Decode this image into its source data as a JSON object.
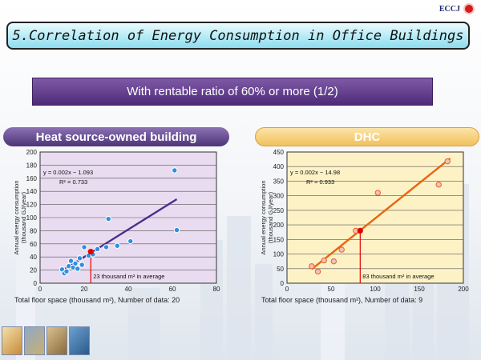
{
  "header": {
    "logo_text": "ECCJ",
    "title": "5.Correlation of Energy Consumption in Office Buildings",
    "subtitle": "With rentable ratio of 60% or more (1/2)"
  },
  "panels": {
    "left_title": "Heat source-owned building",
    "right_title": "DHC"
  },
  "colors": {
    "left_panel": "#e9dcf0",
    "right_panel": "#fdf2c6",
    "left_line": "#4a2e8c",
    "right_line": "#e8650f",
    "left_points": "#2f8ee0",
    "right_points": "#e85b3a",
    "average_marker": "#e00000"
  },
  "chart_data": [
    {
      "type": "scatter",
      "ylabel_line1": "Annual energy consumption",
      "ylabel_line2": "(thousand GJ/year)",
      "xlabel": "Total floor space (thousand m²), Number of data: 20",
      "xlim": [
        0,
        80
      ],
      "ylim": [
        0,
        200
      ],
      "xticks": [
        0,
        20,
        40,
        60,
        80
      ],
      "yticks": [
        0,
        20,
        40,
        60,
        80,
        100,
        120,
        140,
        160,
        180,
        200
      ],
      "equation": "y = 0.002x − 1.093",
      "r2": "R² = 0.733",
      "points": [
        [
          10,
          21
        ],
        [
          11,
          15
        ],
        [
          12,
          18
        ],
        [
          13,
          26
        ],
        [
          14,
          34
        ],
        [
          15,
          24
        ],
        [
          16,
          30
        ],
        [
          17,
          22
        ],
        [
          18,
          38
        ],
        [
          19,
          28
        ],
        [
          20,
          55
        ],
        [
          22,
          42
        ],
        [
          24,
          44
        ],
        [
          26,
          52
        ],
        [
          30,
          55
        ],
        [
          31,
          98
        ],
        [
          35,
          57
        ],
        [
          41,
          64
        ],
        [
          61,
          172
        ],
        [
          62,
          81
        ]
      ],
      "trendline": [
        [
          10,
          19
        ],
        [
          62,
          128
        ]
      ],
      "average": {
        "x": 23,
        "y": 48,
        "label": "23 thousand m² in average"
      }
    },
    {
      "type": "scatter",
      "ylabel_line1": "Annual energy consumption",
      "ylabel_line2": "(thousand GJ/year)",
      "xlabel": "Total floor space (thousand m²), Number of data: 9",
      "xlim": [
        0,
        200
      ],
      "ylim": [
        0,
        450
      ],
      "xticks": [
        0,
        50,
        100,
        150,
        200
      ],
      "yticks": [
        0,
        50,
        100,
        150,
        200,
        250,
        300,
        350,
        400,
        450
      ],
      "equation": "y = 0.002x − 14.98",
      "r2": "R² = 0.933",
      "points": [
        [
          28,
          58
        ],
        [
          35,
          40
        ],
        [
          42,
          78
        ],
        [
          53,
          75
        ],
        [
          62,
          115
        ],
        [
          78,
          180
        ],
        [
          103,
          310
        ],
        [
          172,
          338
        ],
        [
          182,
          418
        ]
      ],
      "trendline": [
        [
          28,
          48
        ],
        [
          185,
          428
        ]
      ],
      "average": {
        "x": 83,
        "y": 180,
        "label": "83 thousand m² in average"
      }
    }
  ]
}
